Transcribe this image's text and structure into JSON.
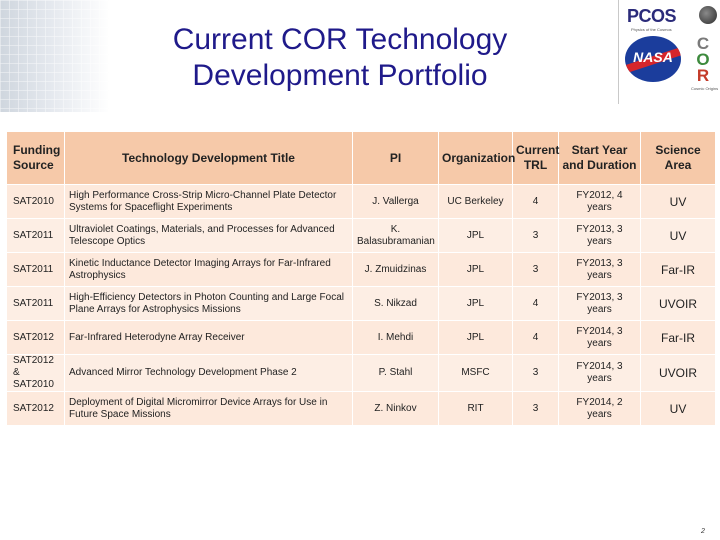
{
  "slide": {
    "title_line1": "Current COR Technology",
    "title_line2": "Development Portfolio",
    "page_number": "2"
  },
  "logos": {
    "pcos_text": "PCOS",
    "pcos_subtitle": "Physics of the Cosmos",
    "nasa_text": "NASA",
    "cor_letters": [
      "C",
      "O",
      "R"
    ],
    "cor_subtitle": "Cosmic Origins"
  },
  "table": {
    "headers": {
      "funding_source": "Funding Source",
      "title": "Technology Development Title",
      "pi": "PI",
      "organization": "Organization",
      "trl": "Current TRL",
      "start_duration": "Start Year and Duration",
      "science_area": "Science Area"
    },
    "rows": [
      {
        "source": "SAT2010",
        "title": "High Performance Cross-Strip Micro-Channel Plate Detector Systems for Spaceflight Experiments",
        "pi": "J. Vallerga",
        "org": "UC Berkeley",
        "trl": "4",
        "start": "FY2012, 4 years",
        "area": "UV"
      },
      {
        "source": "SAT2011",
        "title": "Ultraviolet Coatings, Materials, and Processes for Advanced Telescope Optics",
        "pi": "K. Balasubramanian",
        "org": "JPL",
        "trl": "3",
        "start": "FY2013, 3 years",
        "area": "UV"
      },
      {
        "source": "SAT2011",
        "title": "Kinetic Inductance Detector Imaging Arrays for Far-Infrared Astrophysics",
        "pi": "J. Zmuidzinas",
        "org": "JPL",
        "trl": "3",
        "start": "FY2013, 3 years",
        "area": "Far-IR"
      },
      {
        "source": "SAT2011",
        "title": "High-Efficiency Detectors in Photon Counting and Large Focal Plane Arrays for Astrophysics Missions",
        "pi": "S. Nikzad",
        "org": "JPL",
        "trl": "4",
        "start": "FY2013, 3 years",
        "area": "UVOIR"
      },
      {
        "source": "SAT2012",
        "title": "Far-Infrared Heterodyne Array Receiver",
        "pi": "I. Mehdi",
        "org": "JPL",
        "trl": "4",
        "start": "FY2014, 3 years",
        "area": "Far-IR"
      },
      {
        "source": "SAT2012 & SAT2010",
        "title": "Advanced Mirror Technology Development Phase 2",
        "pi": "P. Stahl",
        "org": "MSFC",
        "trl": "3",
        "start": "FY2014, 3 years",
        "area": "UVOIR"
      },
      {
        "source": "SAT2012",
        "title": "Deployment of Digital Micromirror Device Arrays for Use in Future Space Missions",
        "pi": "Z. Ninkov",
        "org": "RIT",
        "trl": "3",
        "start": "FY2014, 2 years",
        "area": "UV"
      }
    ]
  }
}
